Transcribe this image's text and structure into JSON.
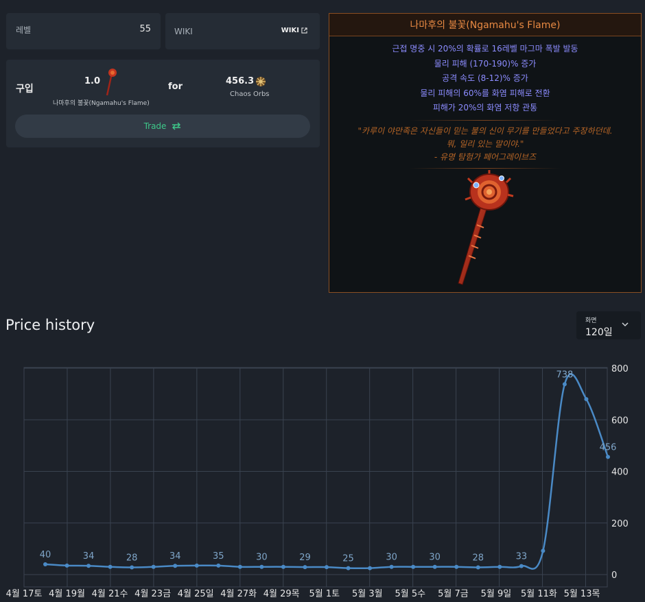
{
  "level": {
    "label": "레벨",
    "value": "55"
  },
  "wiki": {
    "label": "WIKI",
    "link_label": "WIKI"
  },
  "buy": {
    "title": "구입",
    "item_qty": "1.0",
    "item_name": "나마후의 불꽃(Ngamahu's Flame)",
    "for_label": "for",
    "price": "456.3",
    "currency": "Chaos Orbs",
    "trade_label": "Trade"
  },
  "item": {
    "name": "나마후의 불꽃(Ngamahu's Flame)",
    "mods": [
      "근접 명중 시 20%의 확률로 16레벨 마그마 폭발 발동",
      "물리 피해 (170-190)% 증가",
      "공격 속도 (8-12)% 증가",
      "물리 피해의 60%를 화염 피해로 전환",
      "피해가 20%의 화염 저항 관통"
    ],
    "flavour": [
      "\"카루이 야만족은 자신들이 믿는 불의 신이 무기를 만들었다고 주장하던데.",
      "뭐, 일리 있는 말이야.\"",
      "- 유명 탐험가 페어그레이브즈"
    ],
    "colors": {
      "name": "#e98a43",
      "mods": "#8c8cff",
      "flavour": "#b66526",
      "border": "#8a4f22"
    }
  },
  "price_history": {
    "title": "Price history",
    "range_label": "화면",
    "range_value": "120일"
  },
  "chart_data": {
    "type": "line",
    "x_tick_labels": [
      "4월 17토",
      "4월 19월",
      "4월 21수",
      "4월 23금",
      "4월 25일",
      "4월 27화",
      "4월 29목",
      "5월 1토",
      "5월 3월",
      "5월 5수",
      "5월 7금",
      "5월 9일",
      "5월 11화",
      "5월 13목"
    ],
    "y_tick_labels": [
      "800",
      "600",
      "400",
      "200",
      "0"
    ],
    "ylim": [
      0,
      800
    ],
    "series": [
      {
        "values": [
          40,
          35,
          34,
          30,
          28,
          30,
          34,
          35,
          35,
          30,
          30,
          30,
          29,
          29,
          25,
          25,
          30,
          30,
          30,
          30,
          28,
          30,
          33,
          92,
          738,
          680,
          456
        ],
        "labels": [
          40,
          null,
          34,
          null,
          28,
          null,
          34,
          null,
          35,
          null,
          30,
          null,
          29,
          null,
          25,
          null,
          30,
          null,
          30,
          null,
          28,
          null,
          33,
          null,
          738,
          null,
          456
        ]
      }
    ],
    "colors": {
      "line": "#4a8ac6",
      "grid": "#3a4350",
      "labels": "#7fa6c9"
    },
    "grid": true
  }
}
